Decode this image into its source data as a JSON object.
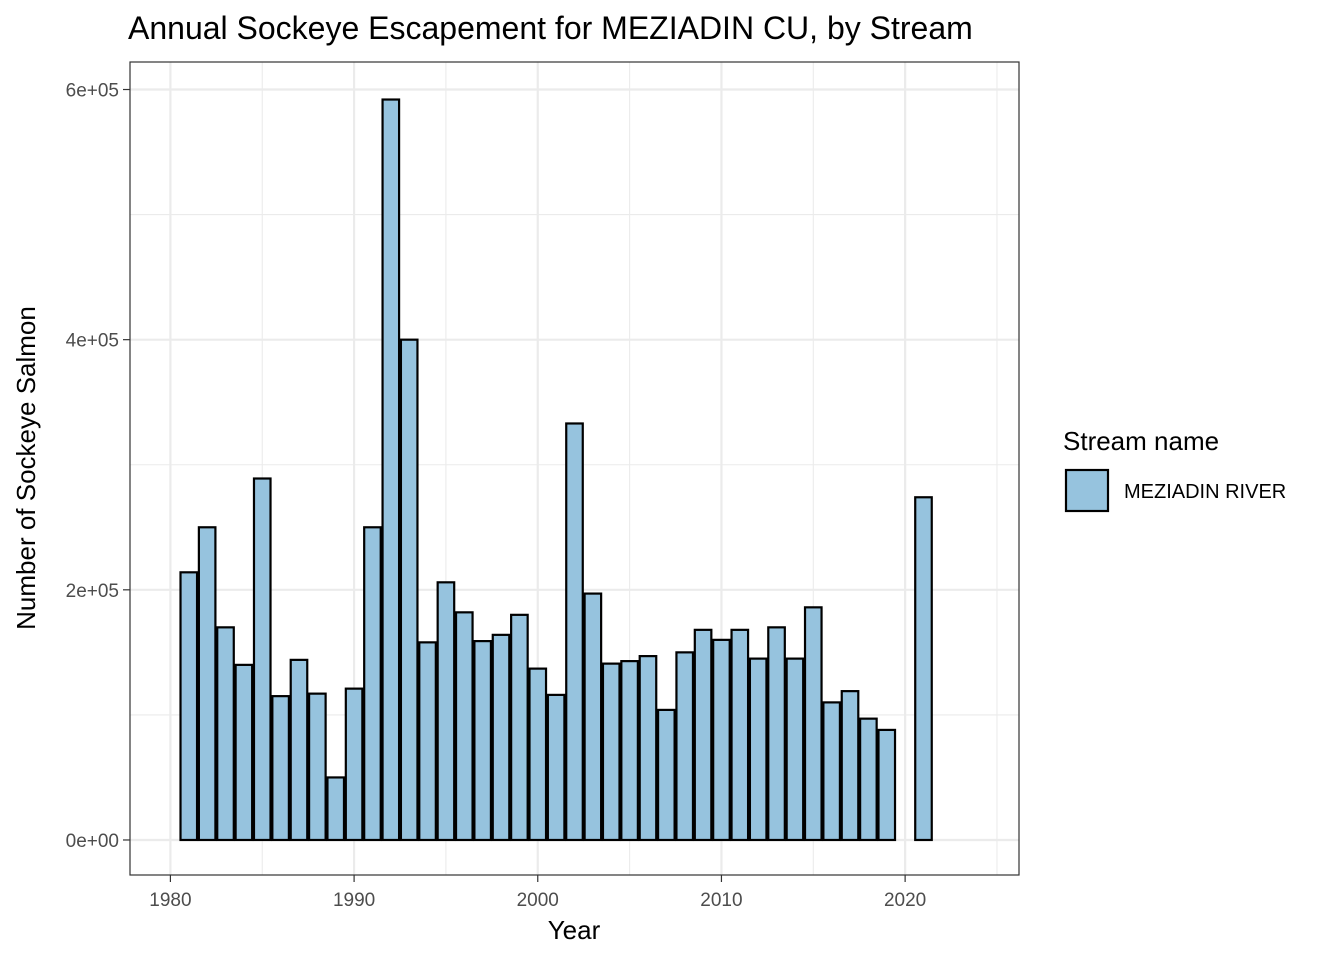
{
  "chart_data": {
    "type": "bar",
    "title": "Annual Sockeye Escapement for MEZIADIN CU, by Stream",
    "xlabel": "Year",
    "ylabel": "Number of Sockeye Salmon",
    "xlim": [
      1977.8,
      2026.2
    ],
    "ylim": [
      -28000,
      622000
    ],
    "x_ticks": [
      1980,
      1990,
      2000,
      2010,
      2020
    ],
    "x_tick_labels": [
      "1980",
      "1990",
      "2000",
      "2010",
      "2020"
    ],
    "y_ticks": [
      0,
      200000,
      400000,
      600000
    ],
    "y_tick_labels": [
      "0e+00",
      "2e+05",
      "4e+05",
      "6e+05"
    ],
    "grid": true,
    "legend": {
      "title": "Stream name",
      "placement": "right",
      "entries": [
        "MEZIADIN RIVER"
      ]
    },
    "colors": {
      "fill": "#96c3de",
      "outline": "#000000",
      "grid": "#ebebeb",
      "panel_border": "#333333"
    },
    "series": [
      {
        "name": "MEZIADIN RIVER",
        "x": [
          1981,
          1982,
          1983,
          1984,
          1985,
          1986,
          1987,
          1988,
          1989,
          1990,
          1991,
          1992,
          1993,
          1994,
          1995,
          1996,
          1997,
          1998,
          1999,
          2000,
          2001,
          2002,
          2003,
          2004,
          2005,
          2006,
          2007,
          2008,
          2009,
          2010,
          2011,
          2012,
          2013,
          2014,
          2015,
          2016,
          2017,
          2018,
          2019,
          2021
        ],
        "values": [
          214000,
          250000,
          170000,
          140000,
          289000,
          115000,
          144000,
          117000,
          50000,
          121000,
          250000,
          592000,
          400000,
          158000,
          206000,
          182000,
          159000,
          164000,
          180000,
          137000,
          116000,
          333000,
          197000,
          141000,
          143000,
          147000,
          104000,
          150000,
          168000,
          160000,
          168000,
          145000,
          170000,
          145000,
          186000,
          110000,
          119000,
          97000,
          88000,
          274000
        ]
      }
    ]
  }
}
